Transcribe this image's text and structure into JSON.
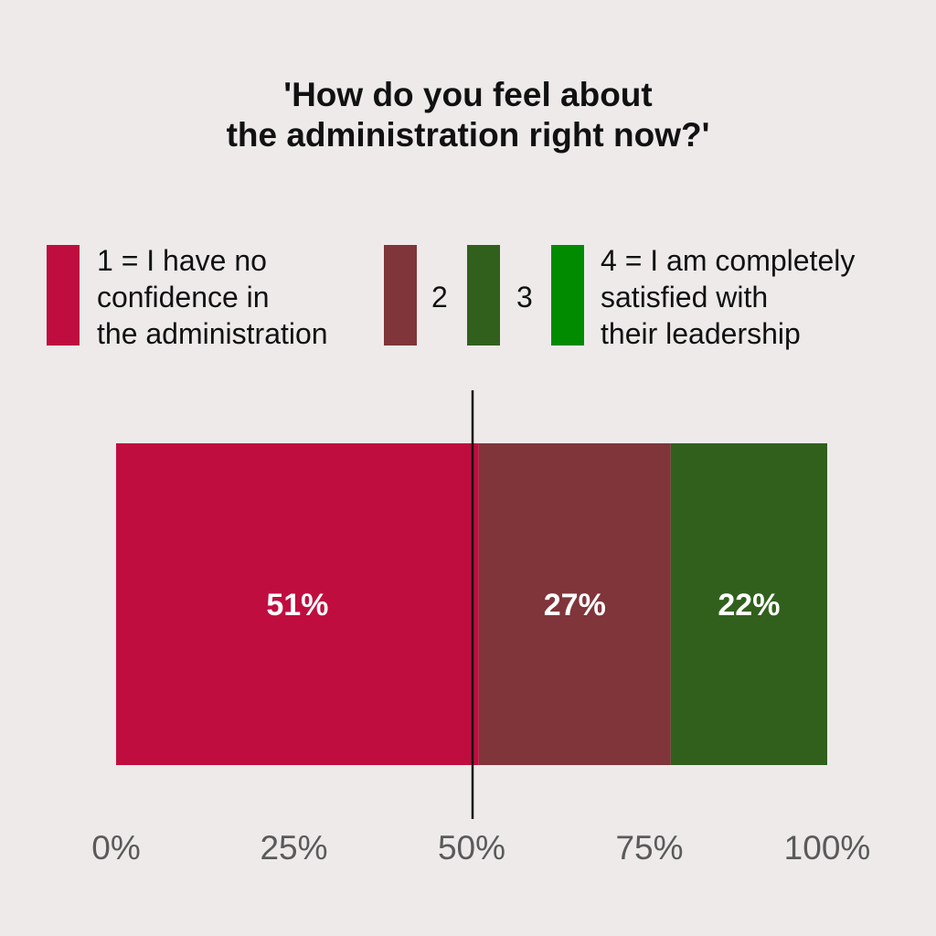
{
  "chart_data": {
    "type": "bar",
    "orientation": "horizontal-stacked",
    "title_lines": [
      "'How do you feel about",
      "the administration right now?'"
    ],
    "legend": [
      {
        "key": "1",
        "lines": [
          "1 = I have no",
          "confidence in",
          "the administration"
        ],
        "color": "#c00d3f"
      },
      {
        "key": "2",
        "lines": [
          "2"
        ],
        "color": "#7f3539"
      },
      {
        "key": "3",
        "lines": [
          "3"
        ],
        "color": "#31601d"
      },
      {
        "key": "4",
        "lines": [
          "4 = I am completely",
          "satisfied with",
          "their leadership"
        ],
        "color": "#008b00"
      }
    ],
    "segments": [
      {
        "key": "1",
        "value": 51,
        "label": "51%",
        "color": "#c00d3f"
      },
      {
        "key": "2",
        "value": 27,
        "label": "27%",
        "color": "#7f3539"
      },
      {
        "key": "3",
        "value": 22,
        "label": "22%",
        "color": "#31601d"
      },
      {
        "key": "4",
        "value": 0,
        "label": "",
        "color": "#008b00"
      }
    ],
    "xlim": [
      0,
      100
    ],
    "x_ticks": [
      0,
      25,
      50,
      75,
      100
    ],
    "x_tick_labels": [
      "0%",
      "25%",
      "50%",
      "75%",
      "100%"
    ],
    "reference_line": 50,
    "legend_position": "top"
  }
}
